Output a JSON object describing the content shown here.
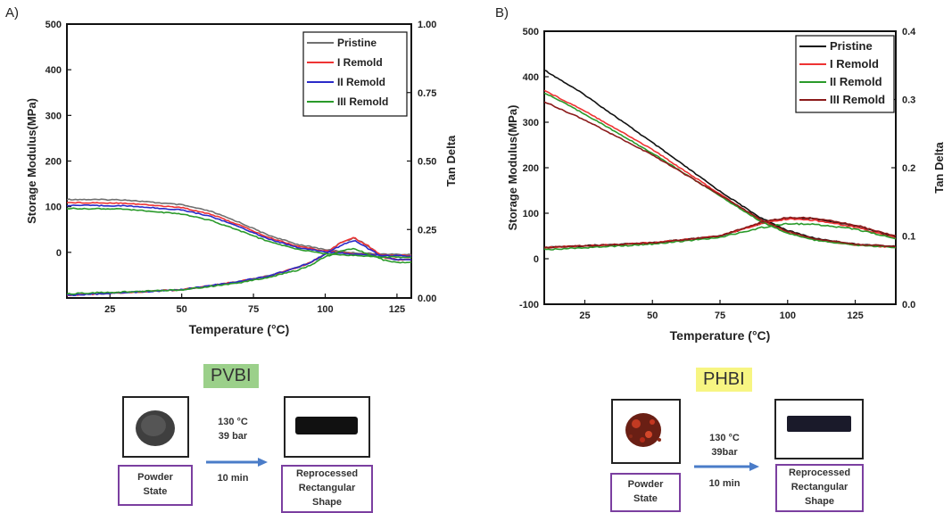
{
  "chart_data": [
    {
      "panel": "A)",
      "type": "line",
      "xlabel": "Temperature (°C)",
      "ylabel": "Storage Modulus(MPa)",
      "y2label": "Tan Delta",
      "xlim": [
        10,
        130
      ],
      "ylim": [
        -100,
        500
      ],
      "y2lim": [
        0,
        1.0
      ],
      "xticks": [
        25,
        50,
        75,
        100,
        125
      ],
      "yticks": [
        0,
        100,
        200,
        300,
        400,
        500
      ],
      "y2ticks": [
        "0.00",
        "0.25",
        "0.50",
        "0.75",
        "1.00"
      ],
      "y2tick_values": [
        0,
        0.25,
        0.5,
        0.75,
        1.0
      ],
      "legend_position": "top-right",
      "series": [
        {
          "name": "Pristine",
          "color": "#707070",
          "storage": {
            "x": [
              10,
              30,
              50,
              60,
              70,
              80,
              90,
              100,
              110,
              120,
              130
            ],
            "y": [
              116,
              115,
              104,
              90,
              66,
              38,
              18,
              6,
              -1,
              -4,
              -5
            ]
          },
          "tan": {
            "x": [
              10,
              50,
              70,
              80,
              90,
              95,
              100,
              105,
              110,
              115,
              120,
              125,
              130
            ],
            "y": [
              0.01,
              0.03,
              0.06,
              0.08,
              0.11,
              0.13,
              0.16,
              0.2,
              0.22,
              0.19,
              0.15,
              0.14,
              0.14
            ]
          }
        },
        {
          "name": "I Remold",
          "color": "#ee3333",
          "storage": {
            "x": [
              10,
              30,
              50,
              60,
              70,
              80,
              90,
              100,
              110,
              120,
              130
            ],
            "y": [
              109,
              108,
              98,
              84,
              60,
              33,
              14,
              3,
              -3,
              -6,
              -7
            ]
          },
          "tan": {
            "x": [
              10,
              50,
              70,
              80,
              90,
              95,
              100,
              105,
              110,
              115,
              120,
              125,
              130
            ],
            "y": [
              0.01,
              0.03,
              0.06,
              0.08,
              0.11,
              0.13,
              0.16,
              0.2,
              0.22,
              0.19,
              0.15,
              0.14,
              0.14
            ]
          }
        },
        {
          "name": "II Remold",
          "color": "#2a2ac8",
          "storage": {
            "x": [
              10,
              30,
              50,
              60,
              70,
              80,
              90,
              100,
              110,
              120,
              130
            ],
            "y": [
              103,
              102,
              93,
              79,
              56,
              30,
              11,
              1,
              -4,
              -7,
              -8
            ]
          },
          "tan": {
            "x": [
              10,
              50,
              70,
              80,
              90,
              95,
              100,
              105,
              110,
              115,
              120,
              125,
              130
            ],
            "y": [
              0.01,
              0.03,
              0.06,
              0.08,
              0.11,
              0.13,
              0.16,
              0.19,
              0.21,
              0.18,
              0.15,
              0.14,
              0.14
            ]
          }
        },
        {
          "name": "III Remold",
          "color": "#2a9a2a",
          "storage": {
            "x": [
              10,
              30,
              50,
              60,
              70,
              80,
              90,
              100,
              110,
              120,
              130
            ],
            "y": [
              96,
              95,
              84,
              70,
              48,
              24,
              7,
              -3,
              -7,
              -10,
              -11
            ]
          },
          "tan": {
            "x": [
              10,
              50,
              70,
              80,
              90,
              95,
              100,
              105,
              110,
              115,
              120,
              125,
              130
            ],
            "y": [
              0.015,
              0.03,
              0.055,
              0.075,
              0.1,
              0.12,
              0.15,
              0.17,
              0.18,
              0.16,
              0.14,
              0.13,
              0.13
            ]
          }
        }
      ]
    },
    {
      "panel": "B)",
      "type": "line",
      "xlabel": "Temperature (°C)",
      "ylabel": "Storage Modulus(MPa)",
      "y2label": "Tan Delta",
      "xlim": [
        10,
        140
      ],
      "ylim": [
        -100,
        500
      ],
      "y2lim": [
        0,
        0.4
      ],
      "xticks": [
        25,
        50,
        75,
        100,
        125
      ],
      "yticks": [
        -100,
        0,
        100,
        200,
        300,
        400,
        500
      ],
      "y2ticks": [
        "0.0",
        "0.1",
        "0.2",
        "0.3",
        "0.4"
      ],
      "y2tick_values": [
        0,
        0.1,
        0.2,
        0.3,
        0.4
      ],
      "legend_position": "top-right",
      "series": [
        {
          "name": "Pristine",
          "color": "#111111",
          "storage": {
            "x": [
              10,
              25,
              50,
              75,
              90,
              100,
              110,
              125,
              140
            ],
            "y": [
              415,
              360,
              255,
              148,
              90,
              62,
              45,
              32,
              27
            ]
          },
          "tan": {
            "x": [
              10,
              50,
              75,
              90,
              100,
              110,
              125,
              140
            ],
            "y": [
              0.083,
              0.09,
              0.1,
              0.118,
              0.126,
              0.125,
              0.115,
              0.098
            ]
          }
        },
        {
          "name": "I Remold",
          "color": "#ee3333",
          "storage": {
            "x": [
              10,
              25,
              50,
              75,
              90,
              100,
              110,
              125,
              140
            ],
            "y": [
              370,
              325,
              240,
              142,
              84,
              57,
              42,
              30,
              25
            ]
          },
          "tan": {
            "x": [
              10,
              50,
              75,
              90,
              100,
              110,
              125,
              140
            ],
            "y": [
              0.083,
              0.09,
              0.1,
              0.118,
              0.125,
              0.123,
              0.113,
              0.097
            ]
          }
        },
        {
          "name": "II Remold",
          "color": "#2a9a2a",
          "storage": {
            "x": [
              10,
              25,
              50,
              75,
              90,
              100,
              110,
              125,
              140
            ],
            "y": [
              365,
              318,
              232,
              138,
              82,
              56,
              41,
              30,
              25
            ]
          },
          "tan": {
            "x": [
              10,
              50,
              75,
              90,
              100,
              110,
              125,
              140
            ],
            "y": [
              0.08,
              0.088,
              0.098,
              0.112,
              0.118,
              0.117,
              0.11,
              0.096
            ]
          }
        },
        {
          "name": "III Remold",
          "color": "#8b1a1a",
          "storage": {
            "x": [
              10,
              25,
              50,
              75,
              90,
              100,
              110,
              125,
              140
            ],
            "y": [
              345,
              305,
              228,
              140,
              86,
              60,
              44,
              32,
              27
            ]
          },
          "tan": {
            "x": [
              10,
              50,
              75,
              90,
              100,
              110,
              125,
              140
            ],
            "y": [
              0.083,
              0.09,
              0.1,
              0.12,
              0.127,
              0.126,
              0.116,
              0.1
            ]
          }
        }
      ]
    }
  ],
  "schemes": [
    {
      "tag": "PVBI",
      "tag_color": "#9bd08a",
      "powder": "Powder\nState",
      "condition_lines": [
        "130 °C",
        "39 bar",
        "10 min"
      ],
      "product": "Reprocessed\nRectangular\nShape"
    },
    {
      "tag": "PHBI",
      "tag_color": "#f7f582",
      "powder": "Powder\nState",
      "condition_lines": [
        "130 °C",
        "39bar",
        "10 min"
      ],
      "product": "Reprocessed\nRectangular\nShape"
    }
  ]
}
